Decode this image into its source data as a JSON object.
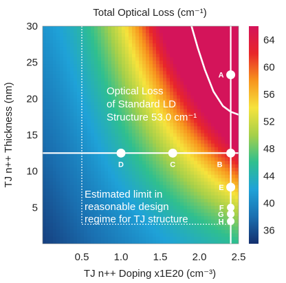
{
  "chart_data": {
    "type": "heatmap",
    "title": "Total Optical Loss (cm⁻¹)",
    "xlabel": "TJ n++ Doping x1E20 (cm⁻³)",
    "ylabel": "TJ n++ Thickness (nm)",
    "xlim": [
      0,
      2.5
    ],
    "ylim": [
      0,
      30
    ],
    "x_ticks": [
      0.5,
      1.0,
      1.5,
      2.0,
      2.5
    ],
    "x_tick_labels": [
      "0.5",
      "1.0",
      "1.5",
      "2.0",
      "2.5"
    ],
    "y_ticks": [
      5,
      10,
      15,
      20,
      25,
      30
    ],
    "y_tick_labels": [
      "5",
      "10",
      "15",
      "20",
      "25",
      "30"
    ],
    "colorbar": {
      "min": 34,
      "max": 66,
      "ticks": [
        36,
        40,
        44,
        48,
        52,
        56,
        60,
        64
      ],
      "tick_labels": [
        "36",
        "40",
        "44",
        "48",
        "52",
        "56",
        "60",
        "64"
      ]
    },
    "colormap": [
      "#142f6e",
      "#1a6fb0",
      "#1fa2d8",
      "#2fbf8f",
      "#a6d04a",
      "#f6e33c",
      "#f7941d",
      "#e8262a",
      "#d4145a"
    ],
    "contour": {
      "label": "Optical Loss\nof Standard LD\nStructure 53.0 cm⁻¹",
      "value": 53.0,
      "points": [
        [
          1.9,
          30
        ],
        [
          1.98,
          27
        ],
        [
          2.07,
          24
        ],
        [
          2.18,
          21
        ],
        [
          2.3,
          19
        ],
        [
          2.4,
          18.2
        ],
        [
          2.5,
          17.8
        ]
      ]
    },
    "reference_lines": {
      "horizontal_y": 12.5,
      "vertical_x": 2.4
    },
    "design_region": {
      "x_min": 0.5,
      "x_max": 2.4,
      "y_max": 30,
      "y_line": 2.7,
      "label": "Estimated limit in\nreasonable design\nregime for TJ structure"
    },
    "points": [
      {
        "label": "A",
        "x": 2.4,
        "y": 23.3
      },
      {
        "label": "B",
        "x": 2.4,
        "y": 12.5
      },
      {
        "label": "C",
        "x": 1.66,
        "y": 12.5
      },
      {
        "label": "D",
        "x": 1.0,
        "y": 12.5
      },
      {
        "label": "E",
        "x": 2.4,
        "y": 7.8
      },
      {
        "label": "F",
        "x": 2.4,
        "y": 5.0
      },
      {
        "label": "G",
        "x": 2.4,
        "y": 4.1
      },
      {
        "label": "H",
        "x": 2.4,
        "y": 3.1
      }
    ]
  }
}
